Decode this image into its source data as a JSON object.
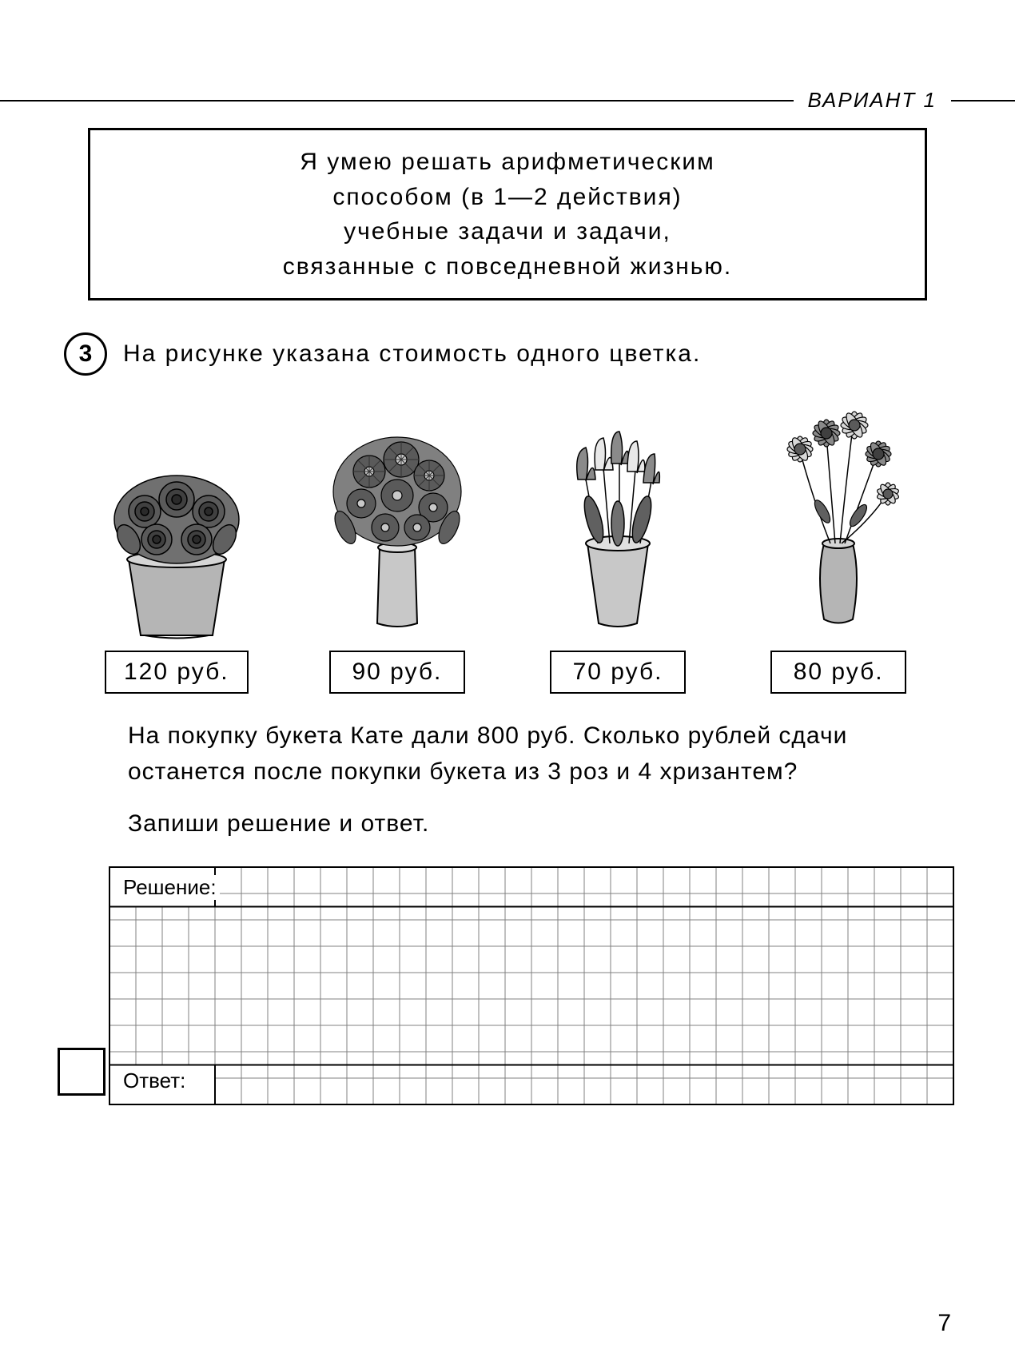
{
  "header": {
    "variant": "ВАРИАНТ  1"
  },
  "objective": {
    "line1": "Я  умею  решать  арифметическим",
    "line2": "способом  (в  1—2  действия)",
    "line3": "учебные  задачи  и  задачи,",
    "line4": "связанные  с  повседневной  жизнью."
  },
  "task": {
    "number": "3",
    "intro": "На  рисунке  указана  стоимость  одного  цветка.",
    "body1": "На  покупку  букета  Кате  дали  800  руб.  Сколько рублей  сдачи  останется  после  покупки  букета  из 3  роз  и  4 хризантем?",
    "body2": "Запиши  решение  и  ответ."
  },
  "flowers": [
    {
      "name": "roses",
      "type": "roses",
      "price": "120  руб."
    },
    {
      "name": "chrysanthemums",
      "type": "asters",
      "price": "90  руб."
    },
    {
      "name": "tulips",
      "type": "tulips",
      "price": "70  руб."
    },
    {
      "name": "daisies",
      "type": "daisies",
      "price": "80  руб."
    }
  ],
  "grid": {
    "solution_label": "Решение:",
    "answer_label": "Ответ:",
    "cols": 32,
    "rows": 9,
    "cell_size": 33,
    "line_color": "#808080",
    "outer_color": "#000000"
  },
  "page_number": "7",
  "colors": {
    "background": "#ffffff",
    "text": "#000000",
    "flower_gray_dark": "#5a5a5a",
    "flower_gray_mid": "#8a8a8a",
    "flower_gray_light": "#c8c8c8",
    "pot_gray": "#b5b5b5",
    "pot_shadow": "#8f8f8f",
    "leaf": "#707070"
  }
}
